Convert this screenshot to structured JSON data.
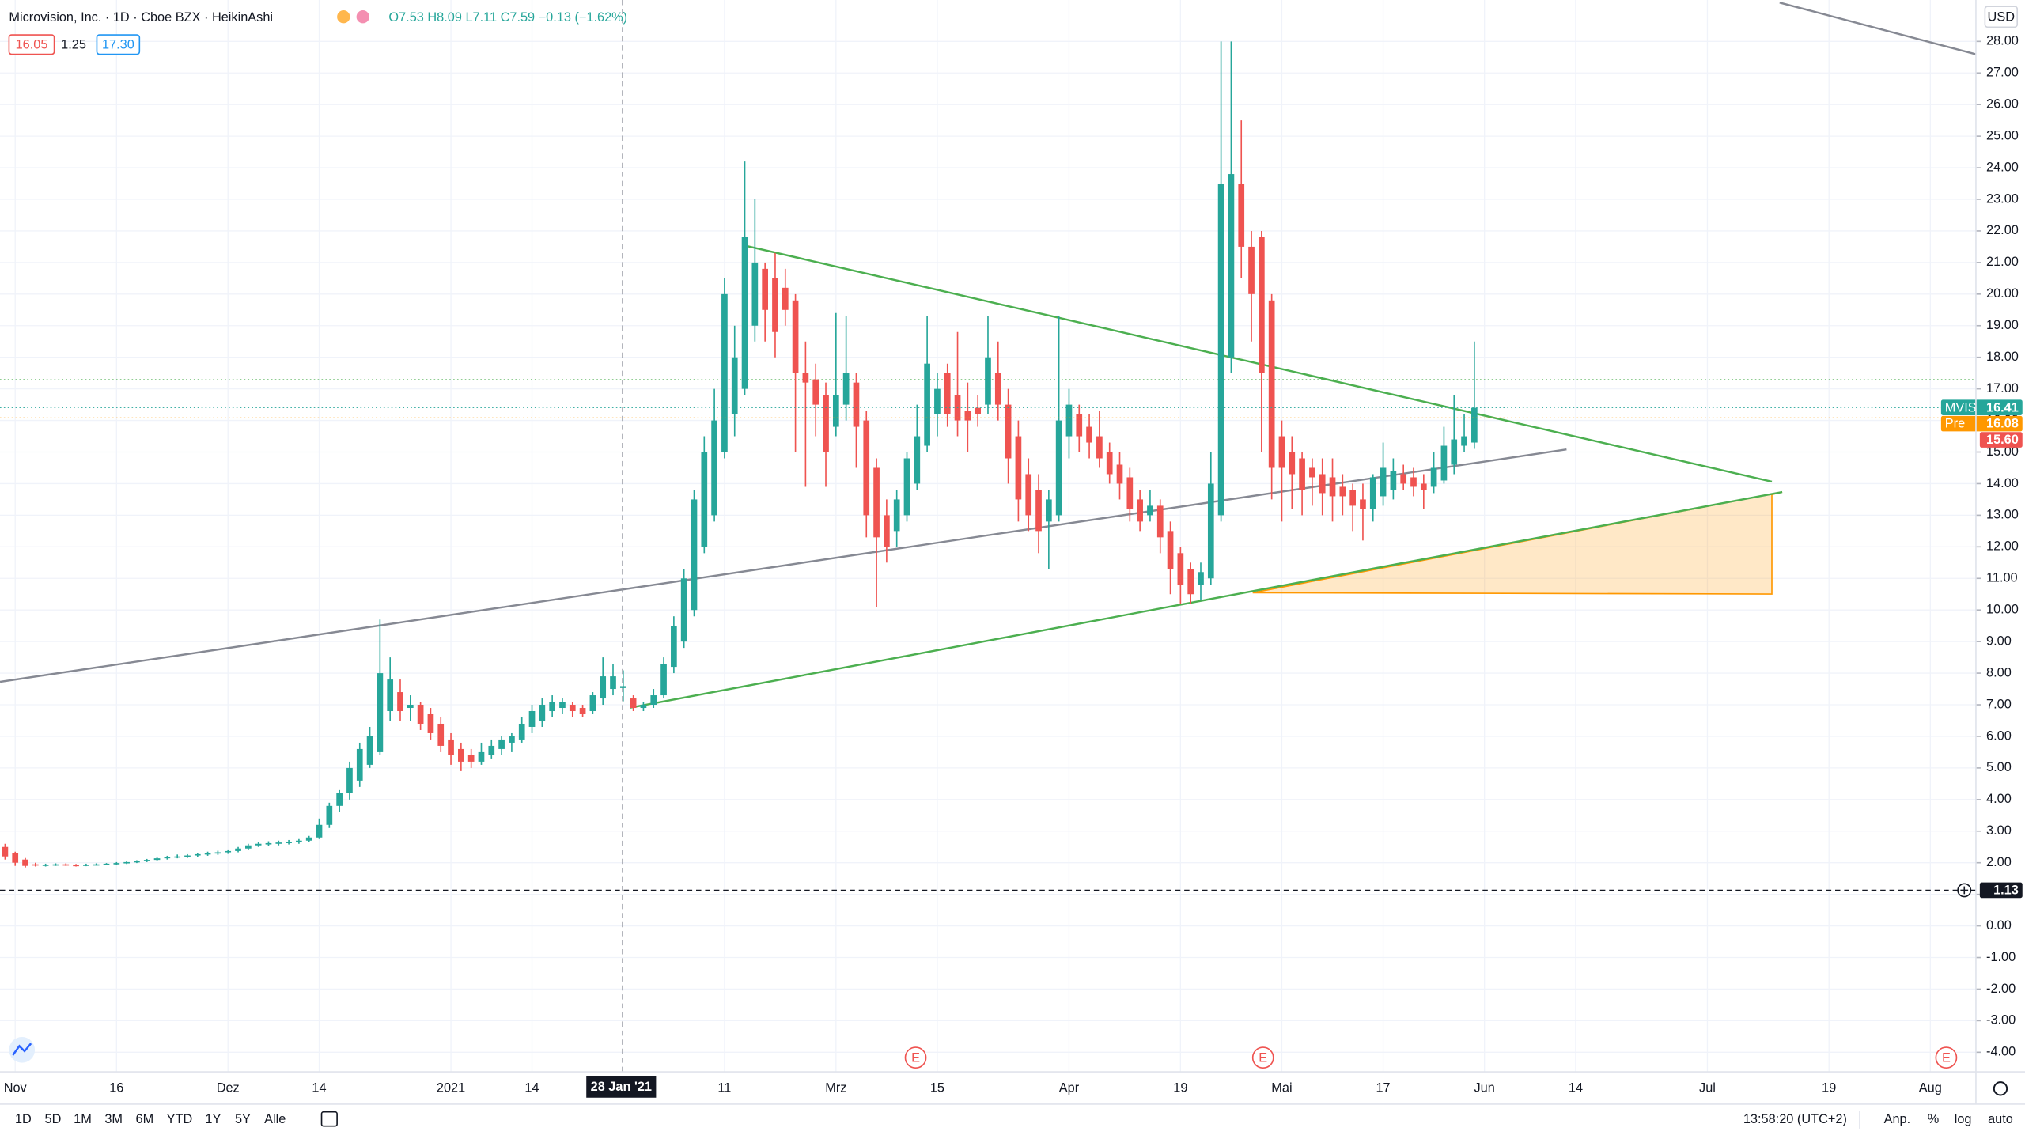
{
  "header": {
    "title": "Microvision, Inc. · 1D · Cboe BZX · HeikinAshi",
    "ohlc": "O7.53 H8.09 L7.11 C7.59 −0.13 (−1.62%)",
    "bid": "16.05",
    "spread": "1.25",
    "ask": "17.30"
  },
  "chart_data": {
    "type": "candlestick",
    "up_color": "#26a69a",
    "down_color": "#ef5350",
    "ohlc": [
      [
        2.5,
        2.6,
        2.1,
        2.2
      ],
      [
        2.3,
        2.35,
        1.9,
        2.0
      ],
      [
        2.1,
        2.15,
        1.85,
        1.9
      ],
      [
        1.95,
        2.0,
        1.88,
        1.92
      ],
      [
        1.92,
        1.97,
        1.88,
        1.94
      ],
      [
        1.94,
        1.98,
        1.9,
        1.95
      ],
      [
        1.95,
        1.98,
        1.9,
        1.93
      ],
      [
        1.93,
        1.96,
        1.88,
        1.92
      ],
      [
        1.92,
        1.97,
        1.89,
        1.94
      ],
      [
        1.94,
        1.98,
        1.91,
        1.95
      ],
      [
        1.95,
        1.99,
        1.92,
        1.97
      ],
      [
        1.97,
        2.02,
        1.94,
        1.99
      ],
      [
        1.99,
        2.05,
        1.96,
        2.02
      ],
      [
        2.02,
        2.08,
        1.99,
        2.05
      ],
      [
        2.05,
        2.12,
        2.02,
        2.09
      ],
      [
        2.09,
        2.18,
        2.05,
        2.14
      ],
      [
        2.14,
        2.22,
        2.1,
        2.18
      ],
      [
        2.18,
        2.26,
        2.14,
        2.2
      ],
      [
        2.2,
        2.27,
        2.15,
        2.23
      ],
      [
        2.23,
        2.31,
        2.19,
        2.27
      ],
      [
        2.27,
        2.35,
        2.22,
        2.3
      ],
      [
        2.3,
        2.38,
        2.25,
        2.33
      ],
      [
        2.33,
        2.42,
        2.28,
        2.37
      ],
      [
        2.37,
        2.5,
        2.33,
        2.45
      ],
      [
        2.45,
        2.6,
        2.4,
        2.55
      ],
      [
        2.55,
        2.65,
        2.5,
        2.6
      ],
      [
        2.6,
        2.68,
        2.52,
        2.62
      ],
      [
        2.62,
        2.7,
        2.55,
        2.64
      ],
      [
        2.64,
        2.72,
        2.58,
        2.66
      ],
      [
        2.66,
        2.75,
        2.6,
        2.7
      ],
      [
        2.7,
        2.85,
        2.65,
        2.8
      ],
      [
        2.8,
        3.4,
        2.75,
        3.2
      ],
      [
        3.2,
        3.9,
        3.1,
        3.8
      ],
      [
        3.8,
        4.3,
        3.6,
        4.2
      ],
      [
        4.2,
        5.2,
        4.0,
        5.0
      ],
      [
        4.6,
        5.8,
        4.4,
        5.6
      ],
      [
        5.1,
        6.3,
        5.0,
        6.0
      ],
      [
        5.5,
        9.7,
        5.4,
        8.0
      ],
      [
        6.8,
        8.5,
        6.5,
        7.8
      ],
      [
        7.4,
        7.8,
        6.5,
        6.8
      ],
      [
        6.9,
        7.3,
        6.5,
        7.0
      ],
      [
        7.0,
        7.1,
        6.2,
        6.4
      ],
      [
        6.7,
        6.9,
        5.9,
        6.1
      ],
      [
        6.4,
        6.6,
        5.5,
        5.7
      ],
      [
        5.9,
        6.1,
        5.1,
        5.4
      ],
      [
        5.6,
        5.8,
        4.9,
        5.2
      ],
      [
        5.4,
        5.6,
        5.0,
        5.2
      ],
      [
        5.2,
        5.8,
        5.1,
        5.5
      ],
      [
        5.4,
        5.9,
        5.3,
        5.7
      ],
      [
        5.6,
        6.0,
        5.4,
        5.9
      ],
      [
        5.8,
        6.1,
        5.5,
        6.0
      ],
      [
        5.9,
        6.6,
        5.8,
        6.4
      ],
      [
        6.3,
        7.0,
        6.1,
        6.8
      ],
      [
        6.5,
        7.2,
        6.3,
        7.0
      ],
      [
        6.8,
        7.3,
        6.6,
        7.1
      ],
      [
        6.9,
        7.2,
        6.7,
        7.1
      ],
      [
        7.0,
        7.1,
        6.6,
        6.8
      ],
      [
        6.9,
        7.0,
        6.6,
        6.7
      ],
      [
        6.8,
        7.4,
        6.7,
        7.3
      ],
      [
        7.2,
        8.5,
        7.0,
        7.9
      ],
      [
        7.5,
        8.3,
        7.3,
        7.9
      ],
      [
        7.53,
        8.09,
        7.11,
        7.59
      ],
      [
        7.2,
        7.3,
        6.8,
        6.9
      ],
      [
        6.9,
        7.1,
        6.8,
        7.0
      ],
      [
        7.0,
        7.5,
        6.9,
        7.3
      ],
      [
        7.3,
        8.5,
        7.2,
        8.3
      ],
      [
        8.2,
        9.8,
        8.0,
        9.5
      ],
      [
        9.0,
        11.3,
        8.8,
        11.0
      ],
      [
        10.0,
        13.8,
        9.8,
        13.5
      ],
      [
        12.0,
        15.5,
        11.8,
        15.0
      ],
      [
        13.0,
        17.0,
        12.8,
        16.0
      ],
      [
        15.0,
        20.5,
        14.8,
        20.0
      ],
      [
        16.2,
        19.0,
        15.5,
        18.0
      ],
      [
        17.0,
        24.2,
        16.8,
        21.8
      ],
      [
        19.0,
        23.0,
        18.5,
        21.0
      ],
      [
        20.8,
        21.0,
        18.5,
        19.5
      ],
      [
        20.5,
        21.3,
        18.0,
        18.8
      ],
      [
        20.2,
        20.8,
        19.0,
        19.5
      ],
      [
        19.8,
        20.0,
        15.0,
        17.5
      ],
      [
        17.5,
        18.5,
        13.9,
        17.2
      ],
      [
        17.3,
        17.8,
        15.5,
        16.5
      ],
      [
        16.8,
        17.2,
        13.9,
        15.0
      ],
      [
        15.8,
        19.4,
        15.5,
        16.8
      ],
      [
        16.5,
        19.3,
        16.0,
        17.5
      ],
      [
        17.2,
        17.5,
        14.5,
        15.8
      ],
      [
        16.0,
        16.3,
        12.3,
        13.0
      ],
      [
        14.5,
        14.8,
        10.1,
        12.3
      ],
      [
        13.0,
        13.5,
        11.5,
        12.0
      ],
      [
        12.5,
        13.8,
        12.0,
        13.5
      ],
      [
        13.0,
        15.0,
        12.8,
        14.8
      ],
      [
        14.0,
        16.5,
        13.8,
        15.5
      ],
      [
        15.2,
        19.3,
        15.0,
        17.8
      ],
      [
        16.2,
        17.5,
        15.5,
        17.0
      ],
      [
        17.5,
        17.8,
        15.8,
        16.2
      ],
      [
        16.8,
        18.8,
        15.5,
        16.0
      ],
      [
        16.3,
        17.2,
        15.0,
        16.0
      ],
      [
        16.4,
        16.8,
        15.8,
        16.2
      ],
      [
        16.5,
        19.3,
        16.2,
        18.0
      ],
      [
        17.5,
        18.5,
        16.0,
        16.5
      ],
      [
        16.5,
        17.0,
        14.0,
        14.8
      ],
      [
        15.5,
        16.0,
        12.8,
        13.5
      ],
      [
        14.3,
        14.8,
        12.5,
        13.0
      ],
      [
        13.8,
        14.3,
        11.8,
        12.5
      ],
      [
        12.8,
        13.8,
        11.3,
        13.5
      ],
      [
        13.0,
        19.3,
        12.8,
        16.0
      ],
      [
        15.5,
        17.0,
        14.8,
        16.5
      ],
      [
        16.2,
        16.5,
        15.0,
        15.5
      ],
      [
        15.8,
        16.2,
        14.8,
        15.3
      ],
      [
        15.5,
        16.3,
        14.5,
        14.8
      ],
      [
        15.0,
        15.3,
        14.0,
        14.3
      ],
      [
        14.6,
        15.0,
        13.5,
        14.0
      ],
      [
        14.2,
        14.5,
        12.8,
        13.2
      ],
      [
        13.5,
        13.8,
        12.5,
        12.8
      ],
      [
        13.0,
        13.8,
        12.8,
        13.3
      ],
      [
        13.3,
        13.5,
        11.8,
        12.3
      ],
      [
        12.5,
        12.8,
        10.5,
        11.3
      ],
      [
        11.8,
        12.0,
        10.2,
        10.8
      ],
      [
        11.3,
        11.5,
        10.2,
        10.5
      ],
      [
        10.8,
        11.5,
        10.3,
        11.2
      ],
      [
        11.0,
        15.0,
        10.8,
        14.0
      ],
      [
        13.0,
        28.0,
        12.8,
        23.5
      ],
      [
        18.0,
        28.0,
        17.5,
        23.8
      ],
      [
        23.5,
        25.5,
        20.5,
        21.5
      ],
      [
        21.5,
        22.0,
        18.5,
        20.0
      ],
      [
        21.8,
        22.0,
        15.0,
        17.5
      ],
      [
        19.8,
        20.0,
        13.5,
        14.5
      ],
      [
        15.5,
        16.0,
        12.8,
        14.5
      ],
      [
        15.0,
        15.5,
        13.2,
        14.3
      ],
      [
        14.8,
        15.0,
        13.0,
        13.8
      ],
      [
        14.5,
        14.8,
        13.3,
        14.2
      ],
      [
        14.3,
        14.8,
        13.0,
        13.7
      ],
      [
        14.2,
        14.8,
        12.8,
        13.6
      ],
      [
        13.9,
        14.3,
        13.0,
        13.6
      ],
      [
        13.8,
        14.0,
        12.5,
        13.3
      ],
      [
        13.5,
        14.0,
        12.2,
        13.2
      ],
      [
        13.2,
        14.3,
        12.8,
        14.2
      ],
      [
        13.6,
        15.3,
        13.3,
        14.5
      ],
      [
        13.8,
        14.8,
        13.5,
        14.4
      ],
      [
        14.3,
        14.6,
        13.8,
        14.0
      ],
      [
        14.2,
        14.5,
        13.6,
        13.9
      ],
      [
        14.0,
        14.3,
        13.2,
        13.8
      ],
      [
        13.9,
        15.0,
        13.7,
        14.5
      ],
      [
        14.1,
        15.8,
        14.0,
        15.2
      ],
      [
        14.6,
        16.8,
        14.3,
        15.4
      ],
      [
        15.2,
        16.2,
        15.0,
        15.5
      ],
      [
        15.3,
        18.5,
        15.1,
        16.4
      ]
    ],
    "xlim": [
      -0.5,
      194.5
    ],
    "ylim": [
      -4.62,
      29.31
    ],
    "xticks": [
      {
        "value": 1,
        "label": "Nov"
      },
      {
        "value": 11,
        "label": "16"
      },
      {
        "value": 22,
        "label": "Dez"
      },
      {
        "value": 31,
        "label": "14"
      },
      {
        "value": 44,
        "label": "2021"
      },
      {
        "value": 52,
        "label": "14"
      },
      {
        "value": 71,
        "label": "11"
      },
      {
        "value": 82,
        "label": "Mrz"
      },
      {
        "value": 92,
        "label": "15"
      },
      {
        "value": 105,
        "label": "Apr"
      },
      {
        "value": 116,
        "label": "19"
      },
      {
        "value": 126,
        "label": "Mai"
      },
      {
        "value": 136,
        "label": "17"
      },
      {
        "value": 146,
        "label": "Jun"
      },
      {
        "value": 155,
        "label": "14"
      },
      {
        "value": 168,
        "label": "Jul"
      },
      {
        "value": 180,
        "label": "19"
      },
      {
        "value": 190,
        "label": "Aug"
      }
    ],
    "yticks": [
      {
        "value": -4,
        "label": "-4.00"
      },
      {
        "value": -3,
        "label": "-3.00"
      },
      {
        "value": -2,
        "label": "-2.00"
      },
      {
        "value": -1,
        "label": "-1.00"
      },
      {
        "value": 0,
        "label": "0.00"
      },
      {
        "value": 1,
        "label": "1.00"
      },
      {
        "value": 2,
        "label": "2.00"
      },
      {
        "value": 3,
        "label": "3.00"
      },
      {
        "value": 4,
        "label": "4.00"
      },
      {
        "value": 5,
        "label": "5.00"
      },
      {
        "value": 6,
        "label": "6.00"
      },
      {
        "value": 7,
        "label": "7.00"
      },
      {
        "value": 8,
        "label": "8.00"
      },
      {
        "value": 9,
        "label": "9.00"
      },
      {
        "value": 10,
        "label": "10.00"
      },
      {
        "value": 11,
        "label": "11.00"
      },
      {
        "value": 12,
        "label": "12.00"
      },
      {
        "value": 13,
        "label": "13.00"
      },
      {
        "value": 14,
        "label": "14.00"
      },
      {
        "value": 15,
        "label": "15.00"
      },
      {
        "value": 16,
        "label": "16.00"
      },
      {
        "value": 17,
        "label": "17.00"
      },
      {
        "value": 18,
        "label": "18.00"
      },
      {
        "value": 19,
        "label": "19.00"
      },
      {
        "value": 20,
        "label": "20.00"
      },
      {
        "value": 21,
        "label": "21.00"
      },
      {
        "value": 22,
        "label": "22.00"
      },
      {
        "value": 23,
        "label": "23.00"
      },
      {
        "value": 24,
        "label": "24.00"
      },
      {
        "value": 25,
        "label": "25.00"
      },
      {
        "value": 26,
        "label": "26.00"
      },
      {
        "value": 27,
        "label": "27.00"
      },
      {
        "value": 28,
        "label": "28.00"
      }
    ],
    "price_tags": [
      {
        "name": "MVIS",
        "value": 16.41,
        "color": "#26a69a",
        "line": "dotted"
      },
      {
        "name": "Pre",
        "value": 16.08,
        "color": "#ff9800",
        "line": "dotted"
      },
      {
        "value": 15.6,
        "label": "15.60",
        "color": "#ef5350"
      },
      {
        "value": 1.13,
        "color": "#131722",
        "line": "dashed"
      }
    ],
    "currency": "USD",
    "crosshair_label": "28 Jan '21"
  },
  "earnings": [
    "E",
    "E",
    "E"
  ],
  "toolbar": {
    "intervals": [
      "1D",
      "5D",
      "1M",
      "3M",
      "6M",
      "YTD",
      "1Y",
      "5Y",
      "Alle"
    ],
    "time": "13:58:20 (UTC+2)",
    "options": [
      "Anp.",
      "%",
      "log",
      "auto"
    ]
  }
}
